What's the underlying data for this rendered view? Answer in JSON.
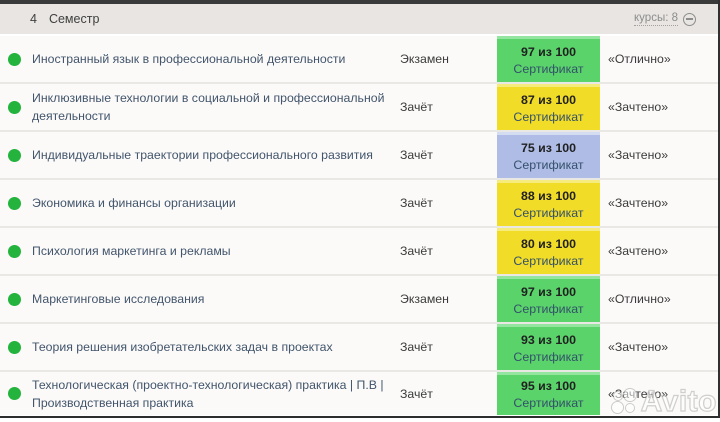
{
  "header": {
    "semester_number": "4",
    "semester_label": "Семестр",
    "courses_toggle": "курсы: 8"
  },
  "rows": [
    {
      "course": "Иностранный язык в профессиональной деятельности",
      "assessment": "Экзамен",
      "score": "97 из 100",
      "score_link": "Сертификат",
      "grade": "«Отлично»",
      "badge": "green"
    },
    {
      "course": "Инклюзивные технологии в социальной и профессиональной деятельности",
      "assessment": "Зачёт",
      "score": "87 из 100",
      "score_link": "Сертификат",
      "grade": "«Зачтено»",
      "badge": "yellow"
    },
    {
      "course": "Индивидуальные траектории профессионального развития",
      "assessment": "Зачёт",
      "score": "75 из 100",
      "score_link": "Сертификат",
      "grade": "«Зачтено»",
      "badge": "blue"
    },
    {
      "course": "Экономика и финансы организации",
      "assessment": "Зачёт",
      "score": "88 из 100",
      "score_link": "Сертификат",
      "grade": "«Зачтено»",
      "badge": "yellow"
    },
    {
      "course": "Психология маркетинга и рекламы",
      "assessment": "Зачёт",
      "score": "80 из 100",
      "score_link": "Сертификат",
      "grade": "«Зачтено»",
      "badge": "yellow"
    },
    {
      "course": "Маркетинговые исследования",
      "assessment": "Экзамен",
      "score": "97 из 100",
      "score_link": "Сертификат",
      "grade": "«Отлично»",
      "badge": "green"
    },
    {
      "course": "Теория решения изобретательских задач в проектах",
      "assessment": "Зачёт",
      "score": "93 из 100",
      "score_link": "Сертификат",
      "grade": "«Зачтено»",
      "badge": "green"
    },
    {
      "course": "Технологическая (проектно-технологическая) практика | П.В | Производственная практика",
      "assessment": "Зачёт",
      "score": "95 из 100",
      "score_link": "Сертификат",
      "grade": "«Зачтено»",
      "badge": "green"
    }
  ],
  "badge_colors": {
    "green": {
      "bg": "#59d36a",
      "top": "#93e59f"
    },
    "yellow": {
      "bg": "#f1dc28",
      "top": "#f6ec7d"
    },
    "blue": {
      "bg": "#aebce6",
      "top": "#d4dcf2"
    }
  },
  "status_dot_color": "#24b33c",
  "watermark": {
    "text": "Avito"
  }
}
